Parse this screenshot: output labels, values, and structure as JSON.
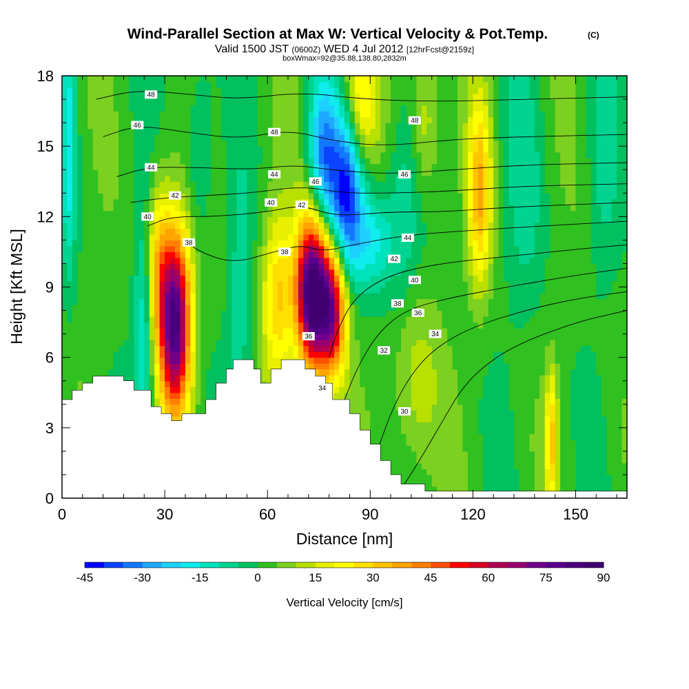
{
  "chart_data": {
    "type": "heatmap",
    "title": "Wind-Parallel Section at Max W: Vertical Velocity & Pot.Temp.",
    "title_mark": "(C)",
    "subtitle": {
      "valid": "Valid 1500 JST",
      "utc": "(0600Z)",
      "date": "WED 4 Jul 2012",
      "forecast": "[12hrFcst@2159z]"
    },
    "note": "boxWmax=92@35.88,138.80,2832m",
    "xlabel": "Distance [nm]",
    "ylabel": "Height [Kft MSL]",
    "xlim": [
      0,
      165
    ],
    "ylim": [
      0,
      18
    ],
    "x_ticks": [
      0,
      30,
      60,
      90,
      120,
      150
    ],
    "y_ticks": [
      0,
      3,
      6,
      9,
      12,
      15,
      18
    ],
    "colorbar": {
      "title": "Vertical Velocity [cm/s]",
      "min": -45,
      "max": 90,
      "step": 5,
      "tick_labels": [
        "-45",
        "-30",
        "-15",
        "0",
        "15",
        "30",
        "45",
        "60",
        "75",
        "90"
      ],
      "colors": [
        "#0000ff",
        "#0a44ff",
        "#1478ff",
        "#1ea8ff",
        "#1ed0ff",
        "#10ecec",
        "#00e2bb",
        "#00d490",
        "#00c060",
        "#30c020",
        "#7cd020",
        "#b8e000",
        "#e8f000",
        "#ffff00",
        "#ffe000",
        "#ffc400",
        "#ffa400",
        "#ff8000",
        "#ff5000",
        "#ff0000",
        "#d80020",
        "#b00050",
        "#980070",
        "#70008c",
        "#58008c",
        "#48007c",
        "#400070"
      ]
    },
    "terrain": [
      {
        "x": 0,
        "y": 4.2
      },
      {
        "x": 3,
        "y": 4.2
      },
      {
        "x": 3,
        "y": 4.6
      },
      {
        "x": 6,
        "y": 4.6
      },
      {
        "x": 6,
        "y": 4.9
      },
      {
        "x": 9,
        "y": 4.9
      },
      {
        "x": 9,
        "y": 5.2
      },
      {
        "x": 18,
        "y": 5.2
      },
      {
        "x": 18,
        "y": 5.0
      },
      {
        "x": 21,
        "y": 5.0
      },
      {
        "x": 21,
        "y": 4.6
      },
      {
        "x": 26,
        "y": 4.6
      },
      {
        "x": 26,
        "y": 3.9
      },
      {
        "x": 29,
        "y": 3.9
      },
      {
        "x": 29,
        "y": 3.6
      },
      {
        "x": 32,
        "y": 3.6
      },
      {
        "x": 32,
        "y": 3.3
      },
      {
        "x": 35,
        "y": 3.3
      },
      {
        "x": 35,
        "y": 3.6
      },
      {
        "x": 42,
        "y": 3.6
      },
      {
        "x": 42,
        "y": 4.2
      },
      {
        "x": 45,
        "y": 4.2
      },
      {
        "x": 45,
        "y": 4.9
      },
      {
        "x": 48,
        "y": 4.9
      },
      {
        "x": 48,
        "y": 5.5
      },
      {
        "x": 50,
        "y": 5.5
      },
      {
        "x": 50,
        "y": 5.9
      },
      {
        "x": 56,
        "y": 5.9
      },
      {
        "x": 56,
        "y": 5.5
      },
      {
        "x": 58,
        "y": 5.5
      },
      {
        "x": 58,
        "y": 4.9
      },
      {
        "x": 61,
        "y": 4.9
      },
      {
        "x": 61,
        "y": 5.5
      },
      {
        "x": 64,
        "y": 5.5
      },
      {
        "x": 64,
        "y": 5.9
      },
      {
        "x": 71,
        "y": 5.9
      },
      {
        "x": 71,
        "y": 5.5
      },
      {
        "x": 74,
        "y": 5.5
      },
      {
        "x": 74,
        "y": 5.2
      },
      {
        "x": 77,
        "y": 5.2
      },
      {
        "x": 77,
        "y": 4.9
      },
      {
        "x": 79,
        "y": 4.9
      },
      {
        "x": 79,
        "y": 4.2
      },
      {
        "x": 84,
        "y": 4.2
      },
      {
        "x": 84,
        "y": 3.6
      },
      {
        "x": 87,
        "y": 3.6
      },
      {
        "x": 87,
        "y": 2.9
      },
      {
        "x": 90,
        "y": 2.9
      },
      {
        "x": 90,
        "y": 2.3
      },
      {
        "x": 93,
        "y": 2.3
      },
      {
        "x": 93,
        "y": 1.6
      },
      {
        "x": 96,
        "y": 1.6
      },
      {
        "x": 96,
        "y": 1.0
      },
      {
        "x": 99,
        "y": 1.0
      },
      {
        "x": 99,
        "y": 0.6
      },
      {
        "x": 106,
        "y": 0.6
      },
      {
        "x": 106,
        "y": 0.3
      },
      {
        "x": 165,
        "y": 0.3
      }
    ],
    "features": [
      {
        "x": 33,
        "y": 7.5,
        "w": 80,
        "sx": 3.2,
        "sy": 2.8
      },
      {
        "x": 73,
        "y": 8.8,
        "w": 90,
        "sx": 3.3,
        "sy": 2.3
      },
      {
        "x": 79,
        "y": 8.0,
        "w": 60,
        "sx": 3.0,
        "sy": 2.0
      },
      {
        "x": 63,
        "y": 8.5,
        "w": 28,
        "sx": 3.2,
        "sy": 2.5
      },
      {
        "x": 28,
        "y": 10.0,
        "w": 25,
        "sx": 2.5,
        "sy": 2.5
      },
      {
        "x": 122,
        "y": 13.0,
        "w": 32,
        "sx": 2.4,
        "sy": 2.8
      },
      {
        "x": 143,
        "y": 2.5,
        "w": 28,
        "sx": 1.2,
        "sy": 2.0
      },
      {
        "x": 87,
        "y": 17.0,
        "w": 25,
        "sx": 3.5,
        "sy": 2.0
      },
      {
        "x": 106,
        "y": 16.0,
        "w": 15,
        "sx": 3.0,
        "sy": 2.5
      },
      {
        "x": 103,
        "y": 5.0,
        "w": 12,
        "sx": 5.0,
        "sy": 3.0
      },
      {
        "x": 83,
        "y": 13.0,
        "w": -42,
        "sx": 3.5,
        "sy": 2.5
      },
      {
        "x": 76,
        "y": 14.5,
        "w": -30,
        "sx": 3.0,
        "sy": 2.5
      },
      {
        "x": 91,
        "y": 11.0,
        "w": -18,
        "sx": 4.0,
        "sy": 1.5
      },
      {
        "x": 24,
        "y": 7.5,
        "w": -18,
        "sx": 2.0,
        "sy": 3.5
      },
      {
        "x": 2,
        "y": 15.0,
        "w": -18,
        "sx": 1.5,
        "sy": 4.0
      },
      {
        "x": 52,
        "y": 8.0,
        "w": -10,
        "sx": 2.5,
        "sy": 4.0
      },
      {
        "x": 40,
        "y": 15.0,
        "w": -10,
        "sx": 3.0,
        "sy": 3.0
      },
      {
        "x": 100,
        "y": 12.0,
        "w": -12,
        "sx": 4.0,
        "sy": 3.0
      },
      {
        "x": 135,
        "y": 13.0,
        "w": -8,
        "sx": 4.0,
        "sy": 4.0
      },
      {
        "x": 158,
        "y": 15.0,
        "w": -8,
        "sx": 3.0,
        "sy": 4.0
      }
    ],
    "theta_contours": [
      {
        "label": "30",
        "points": [
          [
            100,
            0.6
          ],
          [
            104,
            1.5
          ],
          [
            108,
            2.5
          ],
          [
            112,
            3.5
          ],
          [
            116,
            4.5
          ],
          [
            122,
            5.5
          ],
          [
            132,
            6.5
          ],
          [
            150,
            7.5
          ],
          [
            165,
            8.0
          ]
        ]
      },
      {
        "label": "32",
        "points": [
          [
            92,
            2.0
          ],
          [
            97,
            4.0
          ],
          [
            103,
            5.5
          ],
          [
            110,
            6.5
          ],
          [
            120,
            7.3
          ],
          [
            135,
            8.0
          ],
          [
            150,
            8.5
          ],
          [
            165,
            8.8
          ]
        ]
      },
      {
        "label": "34",
        "points": [
          [
            82,
            4.0
          ],
          [
            86,
            5.5
          ],
          [
            92,
            7.0
          ],
          [
            100,
            8.0
          ],
          [
            112,
            8.5
          ],
          [
            130,
            9.0
          ],
          [
            150,
            9.5
          ],
          [
            165,
            9.8
          ]
        ]
      },
      {
        "label": "36",
        "points": [
          [
            78,
            6.0
          ],
          [
            80,
            7.0
          ],
          [
            85,
            8.5
          ],
          [
            95,
            9.5
          ],
          [
            110,
            10.0
          ],
          [
            130,
            10.3
          ],
          [
            150,
            10.6
          ],
          [
            165,
            10.8
          ]
        ]
      },
      {
        "label": "38",
        "points": [
          [
            36,
            11.0
          ],
          [
            40,
            10.5
          ],
          [
            50,
            10.0
          ],
          [
            62,
            10.5
          ],
          [
            70,
            10.8
          ],
          [
            76,
            10.5
          ],
          [
            85,
            10.8
          ],
          [
            100,
            11.2
          ],
          [
            118,
            11.4
          ],
          [
            140,
            11.6
          ],
          [
            165,
            11.8
          ]
        ]
      },
      {
        "label": "40",
        "points": [
          [
            25,
            11.6
          ],
          [
            32,
            12.0
          ],
          [
            45,
            12.0
          ],
          [
            60,
            12.2
          ],
          [
            70,
            12.5
          ],
          [
            80,
            12.0
          ],
          [
            95,
            12.2
          ],
          [
            112,
            12.2
          ],
          [
            130,
            12.4
          ],
          [
            165,
            12.6
          ]
        ]
      },
      {
        "label": "42",
        "points": [
          [
            20,
            12.6
          ],
          [
            30,
            12.8
          ],
          [
            42,
            12.9
          ],
          [
            55,
            13.0
          ],
          [
            70,
            13.3
          ],
          [
            82,
            13.0
          ],
          [
            98,
            13.0
          ],
          [
            115,
            13.1
          ],
          [
            135,
            13.3
          ],
          [
            165,
            13.4
          ]
        ]
      },
      {
        "label": "44",
        "points": [
          [
            16,
            13.7
          ],
          [
            25,
            14.1
          ],
          [
            38,
            14.1
          ],
          [
            55,
            14.0
          ],
          [
            68,
            14.2
          ],
          [
            78,
            14.0
          ],
          [
            95,
            13.8
          ],
          [
            115,
            14.0
          ],
          [
            135,
            14.2
          ],
          [
            165,
            14.3
          ]
        ]
      },
      {
        "label": "46",
        "points": [
          [
            12,
            15.4
          ],
          [
            22,
            15.9
          ],
          [
            36,
            15.6
          ],
          [
            52,
            15.3
          ],
          [
            66,
            15.7
          ],
          [
            80,
            15.2
          ],
          [
            95,
            15.0
          ],
          [
            115,
            15.3
          ],
          [
            135,
            15.4
          ],
          [
            165,
            15.5
          ]
        ]
      },
      {
        "label": "48",
        "points": [
          [
            10,
            17.0
          ],
          [
            22,
            17.4
          ],
          [
            38,
            17.2
          ],
          [
            52,
            17.0
          ],
          [
            70,
            17.3
          ],
          [
            88,
            17.0
          ],
          [
            110,
            16.9
          ],
          [
            135,
            17.0
          ],
          [
            165,
            17.1
          ]
        ]
      }
    ],
    "contour_labels": [
      {
        "text": "48",
        "x": 26,
        "y": 17.2
      },
      {
        "text": "46",
        "x": 22,
        "y": 15.9
      },
      {
        "text": "44",
        "x": 26,
        "y": 14.1
      },
      {
        "text": "42",
        "x": 33,
        "y": 12.9
      },
      {
        "text": "40",
        "x": 25,
        "y": 12.0
      },
      {
        "text": "38",
        "x": 37,
        "y": 10.9
      },
      {
        "text": "48",
        "x": 62,
        "y": 15.6
      },
      {
        "text": "44",
        "x": 62,
        "y": 13.8
      },
      {
        "text": "40",
        "x": 61,
        "y": 12.6
      },
      {
        "text": "46",
        "x": 74,
        "y": 13.5
      },
      {
        "text": "42",
        "x": 70,
        "y": 12.5
      },
      {
        "text": "38",
        "x": 65,
        "y": 10.5
      },
      {
        "text": "36",
        "x": 72,
        "y": 6.9
      },
      {
        "text": "34",
        "x": 76,
        "y": 4.7
      },
      {
        "text": "48",
        "x": 103,
        "y": 16.1
      },
      {
        "text": "46",
        "x": 100,
        "y": 13.8
      },
      {
        "text": "44",
        "x": 101,
        "y": 11.1
      },
      {
        "text": "42",
        "x": 97,
        "y": 10.2
      },
      {
        "text": "40",
        "x": 103,
        "y": 9.3
      },
      {
        "text": "38",
        "x": 98,
        "y": 8.3
      },
      {
        "text": "36",
        "x": 104,
        "y": 7.9
      },
      {
        "text": "34",
        "x": 109,
        "y": 7.0
      },
      {
        "text": "32",
        "x": 94,
        "y": 6.3
      },
      {
        "text": "30",
        "x": 100,
        "y": 3.7
      }
    ]
  }
}
